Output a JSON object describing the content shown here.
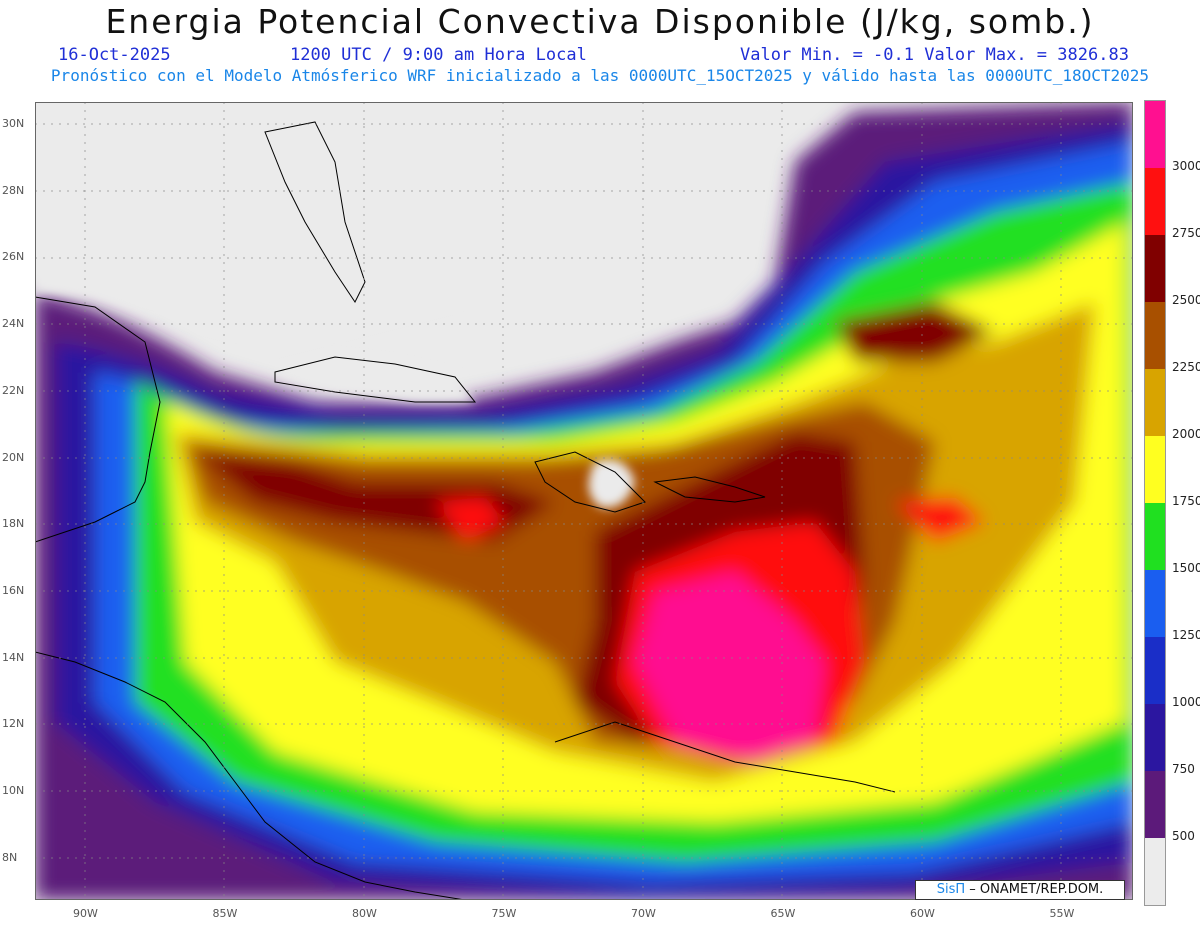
{
  "header": {
    "title": "Energia Potencial Convectiva Disponible (J/kg, somb.)",
    "date": "16-Oct-2025",
    "time": "1200 UTC / 9:00 am Hora Local",
    "minmax": "Valor Min. = -0.1  Valor Max. = 3826.83",
    "subtitle": "Pronóstico con el Modelo Atmósferico WRF inicializado a las 0000UTC_15OCT2025 y válido hasta las  0000UTC_18OCT2025"
  },
  "colorbar": {
    "levels": [
      "500",
      "750",
      "1000",
      "1250",
      "1500",
      "1750",
      "2000",
      "2250",
      "2500",
      "2750",
      "3000"
    ],
    "colors": [
      "#ececec",
      "#5c1a7a",
      "#2b16a0",
      "#1a2ec8",
      "#1a5ef0",
      "#20e020",
      "#ffff20",
      "#d8a400",
      "#a85000",
      "#800000",
      "#ff1010",
      "#ff1090"
    ]
  },
  "axes": {
    "lat_labels": [
      "30N",
      "28N",
      "26N",
      "24N",
      "22N",
      "20N",
      "18N",
      "16N",
      "14N",
      "12N",
      "10N",
      "8N"
    ],
    "lon_labels": [
      "90W",
      "85W",
      "80W",
      "75W",
      "70W",
      "65W",
      "60W",
      "55W"
    ]
  },
  "credit": {
    "logo": "SisΠ",
    "text": "– ONAMET/REP.DOM."
  }
}
